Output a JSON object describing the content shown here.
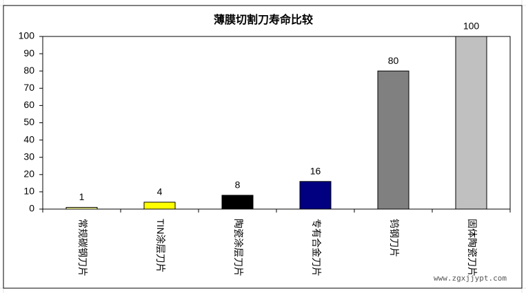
{
  "chart_data": {
    "type": "bar",
    "title": "薄膜切割刀寿命比较",
    "categories": [
      "常规碳钢刀片",
      "TIN涂层刀片",
      "陶瓷涂层刀片",
      "专有合金刀片",
      "钨钢刀片",
      "固体陶瓷刀片"
    ],
    "values": [
      1,
      4,
      8,
      16,
      80,
      100
    ],
    "colors": [
      "#ffff99",
      "#ffff00",
      "#000000",
      "#000080",
      "#808080",
      "#c0c0c0"
    ],
    "ylim": [
      0,
      100
    ],
    "yticks": [
      0,
      10,
      20,
      30,
      40,
      50,
      60,
      70,
      80,
      90,
      100
    ],
    "grid": false
  },
  "watermark": "www.zgxjjypt.com"
}
